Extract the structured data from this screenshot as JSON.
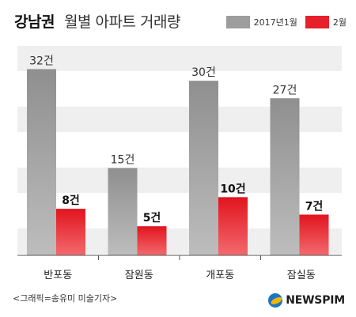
{
  "title": {
    "bold": "강남권",
    "rest": "월별 아파트 거래량"
  },
  "colors": {
    "series1": "#9d9d9d",
    "series2": "#e8202a",
    "band": "#efefef"
  },
  "chart_data": {
    "type": "bar",
    "title": "강남권 월별 아파트 거래량",
    "categories": [
      "반포동",
      "잠원동",
      "개포동",
      "잠실동"
    ],
    "series": [
      {
        "name": "2017년1월",
        "values": [
          32,
          15,
          30,
          27
        ],
        "labels": [
          "32건",
          "15건",
          "30건",
          "27건"
        ]
      },
      {
        "name": "2월",
        "values": [
          8,
          5,
          10,
          7
        ],
        "labels": [
          "8건",
          "5건",
          "10건",
          "7건"
        ]
      }
    ],
    "ylim": [
      0,
      36
    ],
    "grid": "horizontal bands",
    "legend": "top-right"
  },
  "source": "<그래픽=송유미 미술기자>",
  "brand": {
    "text": "NEWSPIM",
    "icon": "newspim-logo-icon"
  }
}
